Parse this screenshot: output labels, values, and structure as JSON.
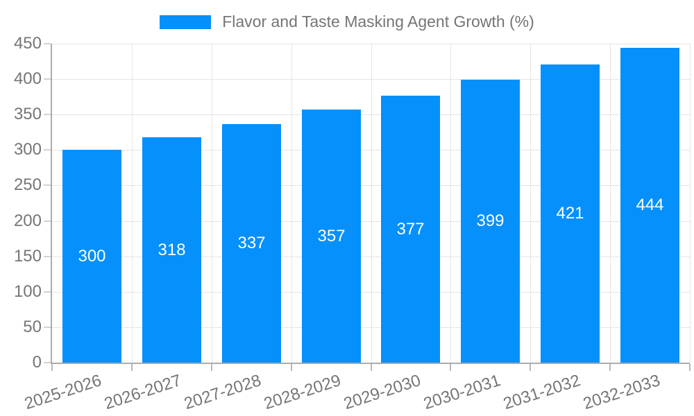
{
  "chart_data": {
    "type": "bar",
    "title": "Flavor and Taste Masking Agent Growth (%)",
    "categories": [
      "2025-2026",
      "2026-2027",
      "2027-2028",
      "2028-2029",
      "2029-2030",
      "2030-2031",
      "2031-2032",
      "2032-2033"
    ],
    "values": [
      300,
      318,
      337,
      357,
      377,
      399,
      421,
      444
    ],
    "xlabel": "",
    "ylabel": "",
    "ylim": [
      0,
      450
    ],
    "yticks": [
      0,
      50,
      100,
      150,
      200,
      250,
      300,
      350,
      400,
      450
    ],
    "grid": true,
    "legend_position": "top-center",
    "bar_color": "#0590fc",
    "value_label_color": "#ffffff",
    "axis_text_color": "#757575",
    "gridline_color": "#e4e4e4",
    "axis_line_color": "#ababab"
  },
  "legend": {
    "label": "Flavor and Taste Masking Agent Growth (%)"
  }
}
